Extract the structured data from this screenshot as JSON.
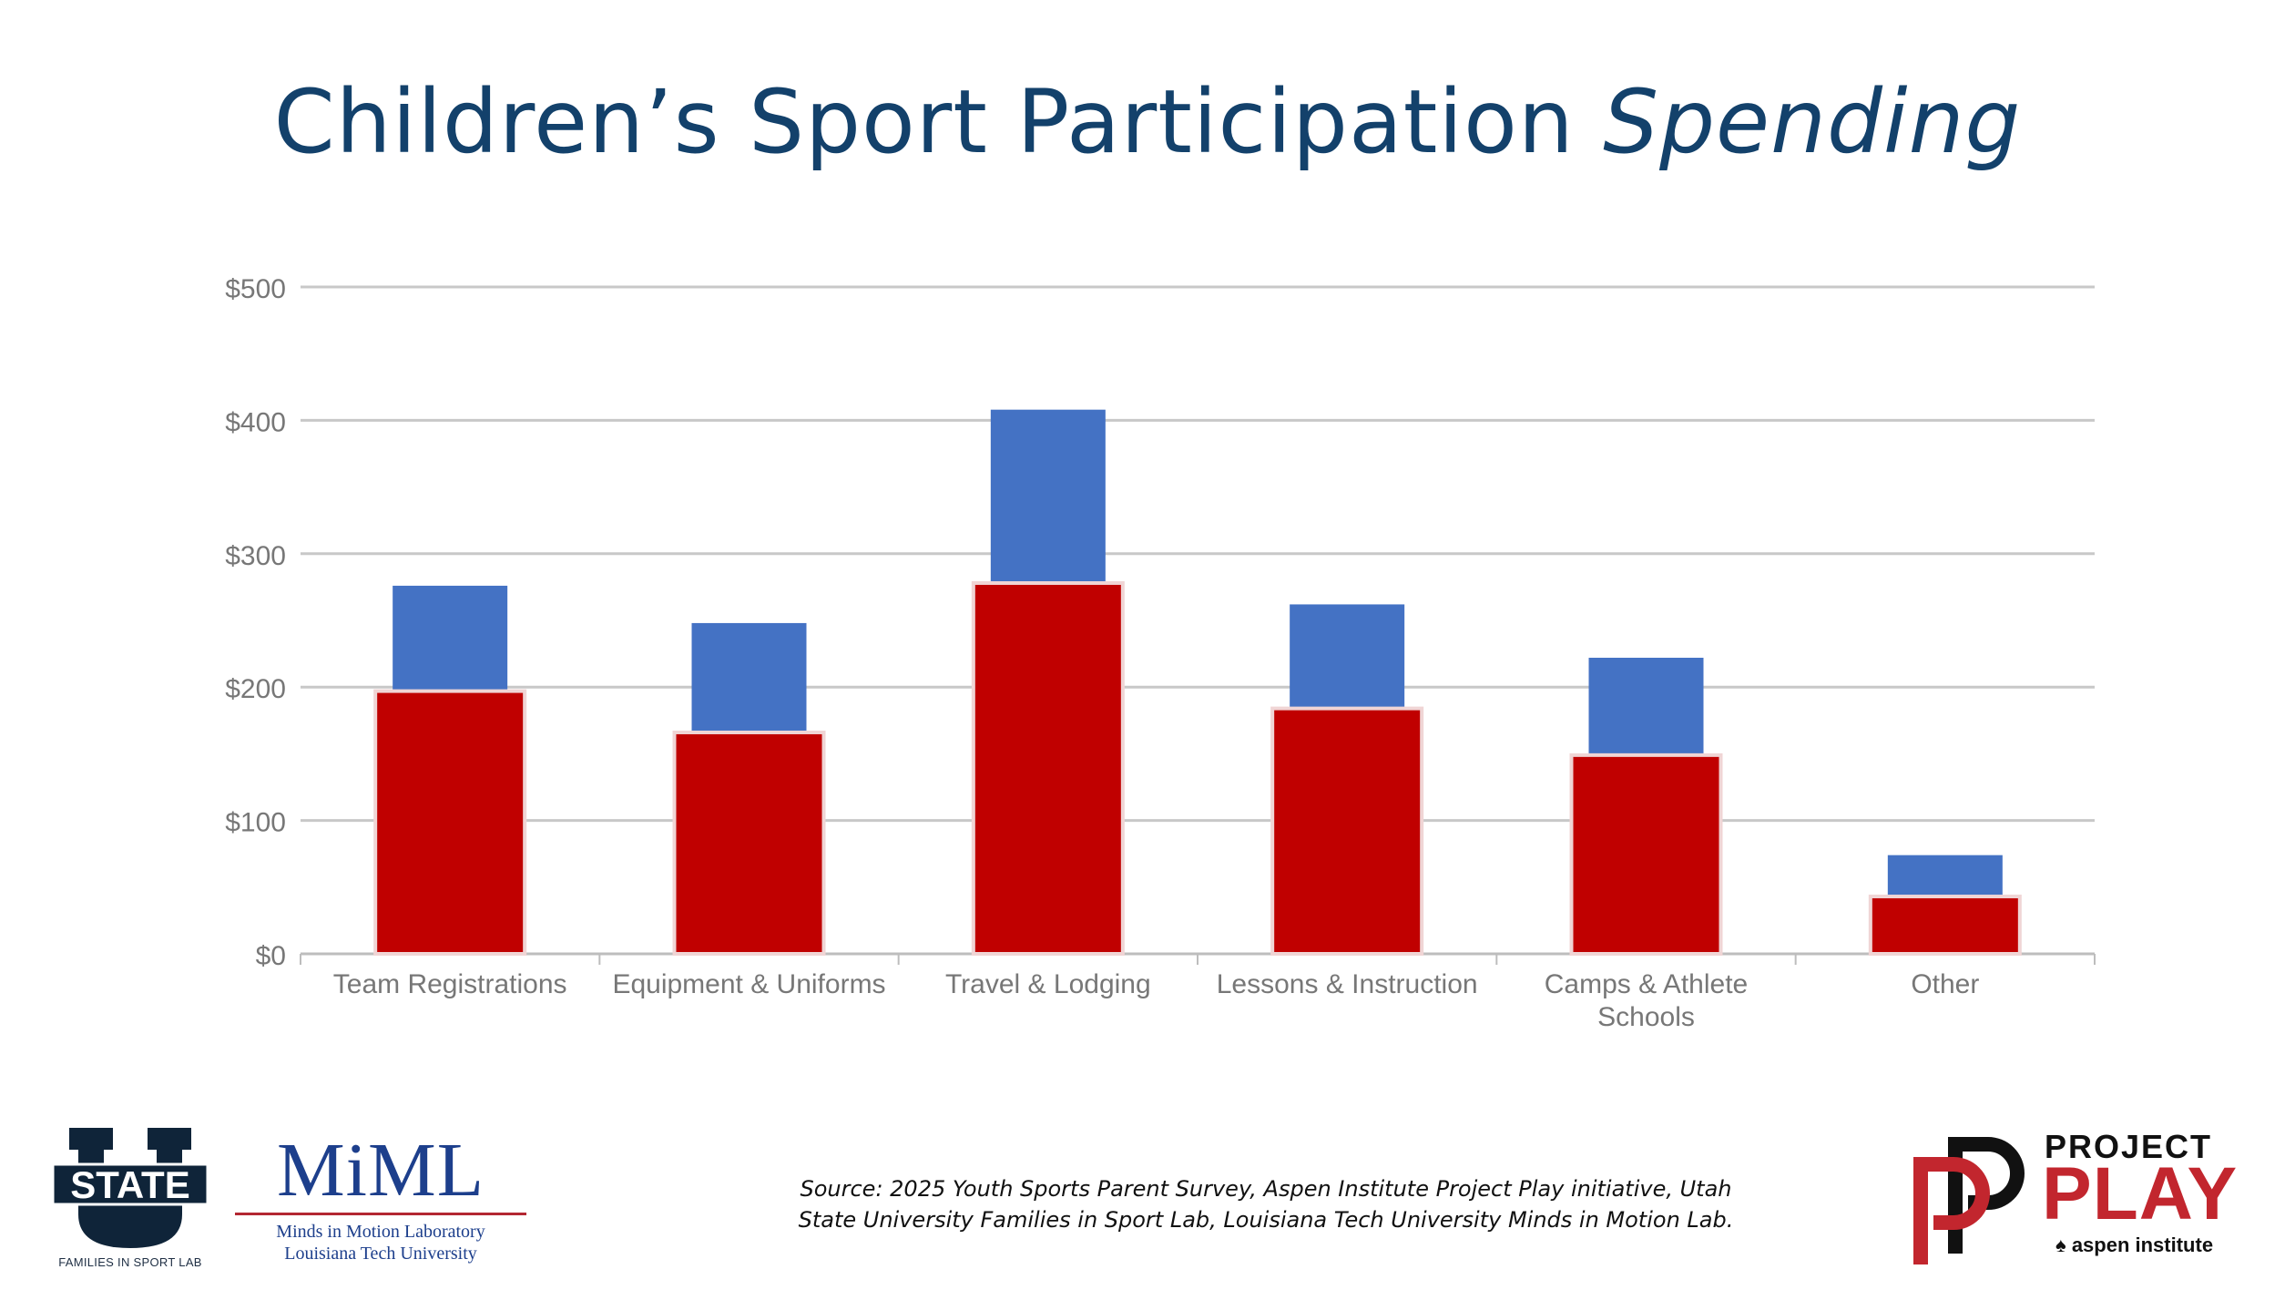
{
  "title": {
    "main": "Children’s Sport Participation ",
    "italic": "Spending"
  },
  "chart_data": {
    "type": "bar",
    "categories": [
      "Team Registrations",
      "Equipment & Uniforms",
      "Travel & Lodging",
      "Lessons & Instruction",
      "Camps & Athlete Schools",
      "Other"
    ],
    "category_lines": [
      [
        "Team Registrations"
      ],
      [
        "Equipment & Uniforms"
      ],
      [
        "Travel & Lodging"
      ],
      [
        "Lessons & Instruction"
      ],
      [
        "Camps & Athlete",
        "Schools"
      ],
      [
        "Other"
      ]
    ],
    "series": [
      {
        "values": [
          276,
          248,
          408,
          262,
          222,
          74
        ],
        "color": "#4472c4"
      },
      {
        "values": [
          197,
          166,
          278,
          184,
          149,
          43
        ],
        "color": "#c00000"
      }
    ],
    "ylim": [
      0,
      500
    ],
    "yticks": [
      0,
      100,
      200,
      300,
      400,
      500
    ],
    "ytick_labels": [
      "$0",
      "$100",
      "$200",
      "$300",
      "$400",
      "$500"
    ],
    "grid": true,
    "xlabel": "",
    "ylabel": ""
  },
  "source": {
    "line1": "Source: 2025 Youth Sports Parent Survey, Aspen Institute Project Play initiative, Utah",
    "line2": "State University Families in Sport Lab, Louisiana Tech University Minds in Motion Lab."
  },
  "logos": {
    "usu": {
      "caption": "FAMILIES IN SPORT LAB",
      "wordmark": "STATE"
    },
    "miml": {
      "letters": "MiML",
      "line1": "Minds in Motion Laboratory",
      "line2": "Louisiana Tech University"
    },
    "project_play": {
      "line1": "PROJECT",
      "line2": "PLAY",
      "tagline": "aspen institute"
    }
  },
  "colors": {
    "title": "#13416b",
    "bar_blue": "#4472c4",
    "bar_red": "#c00000",
    "grid": "#c8c8c8",
    "axis_text": "#777777"
  }
}
